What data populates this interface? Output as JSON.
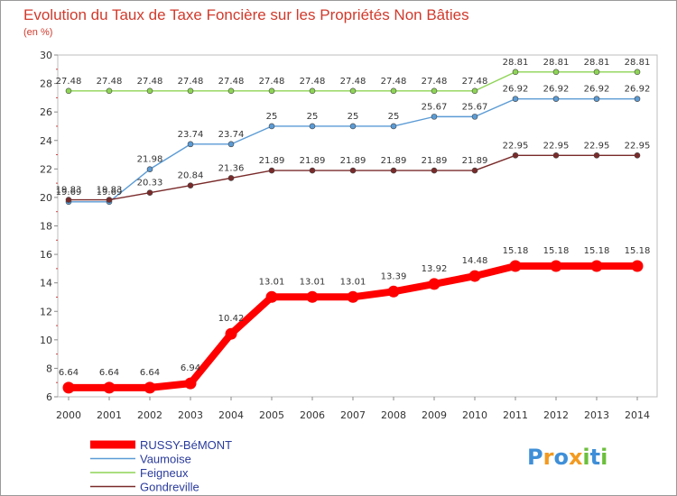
{
  "chart_data": {
    "type": "line",
    "title": "Evolution du Taux de Taxe Foncière sur les Propriétés Non Bâties",
    "subtitle": "(en %)",
    "xlabel": "",
    "ylabel": "",
    "ylim": [
      6,
      30
    ],
    "yticks": [
      6,
      8,
      10,
      12,
      14,
      16,
      18,
      20,
      22,
      24,
      26,
      28,
      30
    ],
    "x": [
      "2000",
      "2001",
      "2002",
      "2003",
      "2004",
      "2005",
      "2006",
      "2007",
      "2008",
      "2009",
      "2010",
      "2011",
      "2012",
      "2013",
      "2014"
    ],
    "grid": false,
    "legend_position": "bottom-left",
    "series": [
      {
        "name": "RUSSY-BéMONT",
        "color": "#ff0000",
        "values": [
          6.64,
          6.64,
          6.64,
          6.94,
          10.42,
          13.01,
          13.01,
          13.01,
          13.39,
          13.92,
          14.48,
          15.18,
          15.18,
          15.18,
          15.18
        ],
        "labels": [
          "6.64",
          "6.64",
          "6.64",
          "6.94",
          "10.42",
          "13.01",
          "13.01",
          "13.01",
          "13.39",
          "13.92",
          "14.48",
          "15.18",
          "15.18",
          "15.18",
          "15.18"
        ]
      },
      {
        "name": "Vaumoise",
        "color": "#5b9bd5",
        "values": [
          19.69,
          19.69,
          21.98,
          23.74,
          23.74,
          25,
          25,
          25,
          25,
          25.67,
          25.67,
          26.92,
          26.92,
          26.92,
          26.92
        ],
        "labels": [
          "19.69",
          "19.69",
          "21.98",
          "23.74",
          "23.74",
          "25",
          "25",
          "25",
          "25",
          "25.67",
          "25.67",
          "26.92",
          "26.92",
          "26.92",
          "26.92"
        ]
      },
      {
        "name": "Feigneux",
        "color": "#8ed456",
        "values": [
          27.48,
          27.48,
          27.48,
          27.48,
          27.48,
          27.48,
          27.48,
          27.48,
          27.48,
          27.48,
          27.48,
          28.81,
          28.81,
          28.81,
          28.81
        ],
        "labels": [
          "27.48",
          "27.48",
          "27.48",
          "27.48",
          "27.48",
          "27.48",
          "27.48",
          "27.48",
          "27.48",
          "27.48",
          "27.48",
          "28.81",
          "28.81",
          "28.81",
          "28.81"
        ]
      },
      {
        "name": "Gondreville",
        "color": "#7a2a2a",
        "values": [
          19.83,
          19.83,
          20.33,
          20.84,
          21.36,
          21.89,
          21.89,
          21.89,
          21.89,
          21.89,
          21.89,
          22.95,
          22.95,
          22.95,
          22.95
        ],
        "labels": [
          "19.83",
          "19.83",
          "20.33",
          "20.84",
          "21.36",
          "21.89",
          "21.89",
          "21.89",
          "21.89",
          "21.89",
          "21.89",
          "22.95",
          "22.95",
          "22.95",
          "22.95"
        ]
      }
    ]
  },
  "brand": {
    "letters": [
      "P",
      "r",
      "o",
      "x",
      "i",
      "t",
      "i"
    ],
    "colors": [
      "#3f8fd8",
      "#f39a1f",
      "#3f8fd8",
      "#f39a1f",
      "#6cbf3c",
      "#3f8fd8",
      "#6cbf3c"
    ]
  }
}
